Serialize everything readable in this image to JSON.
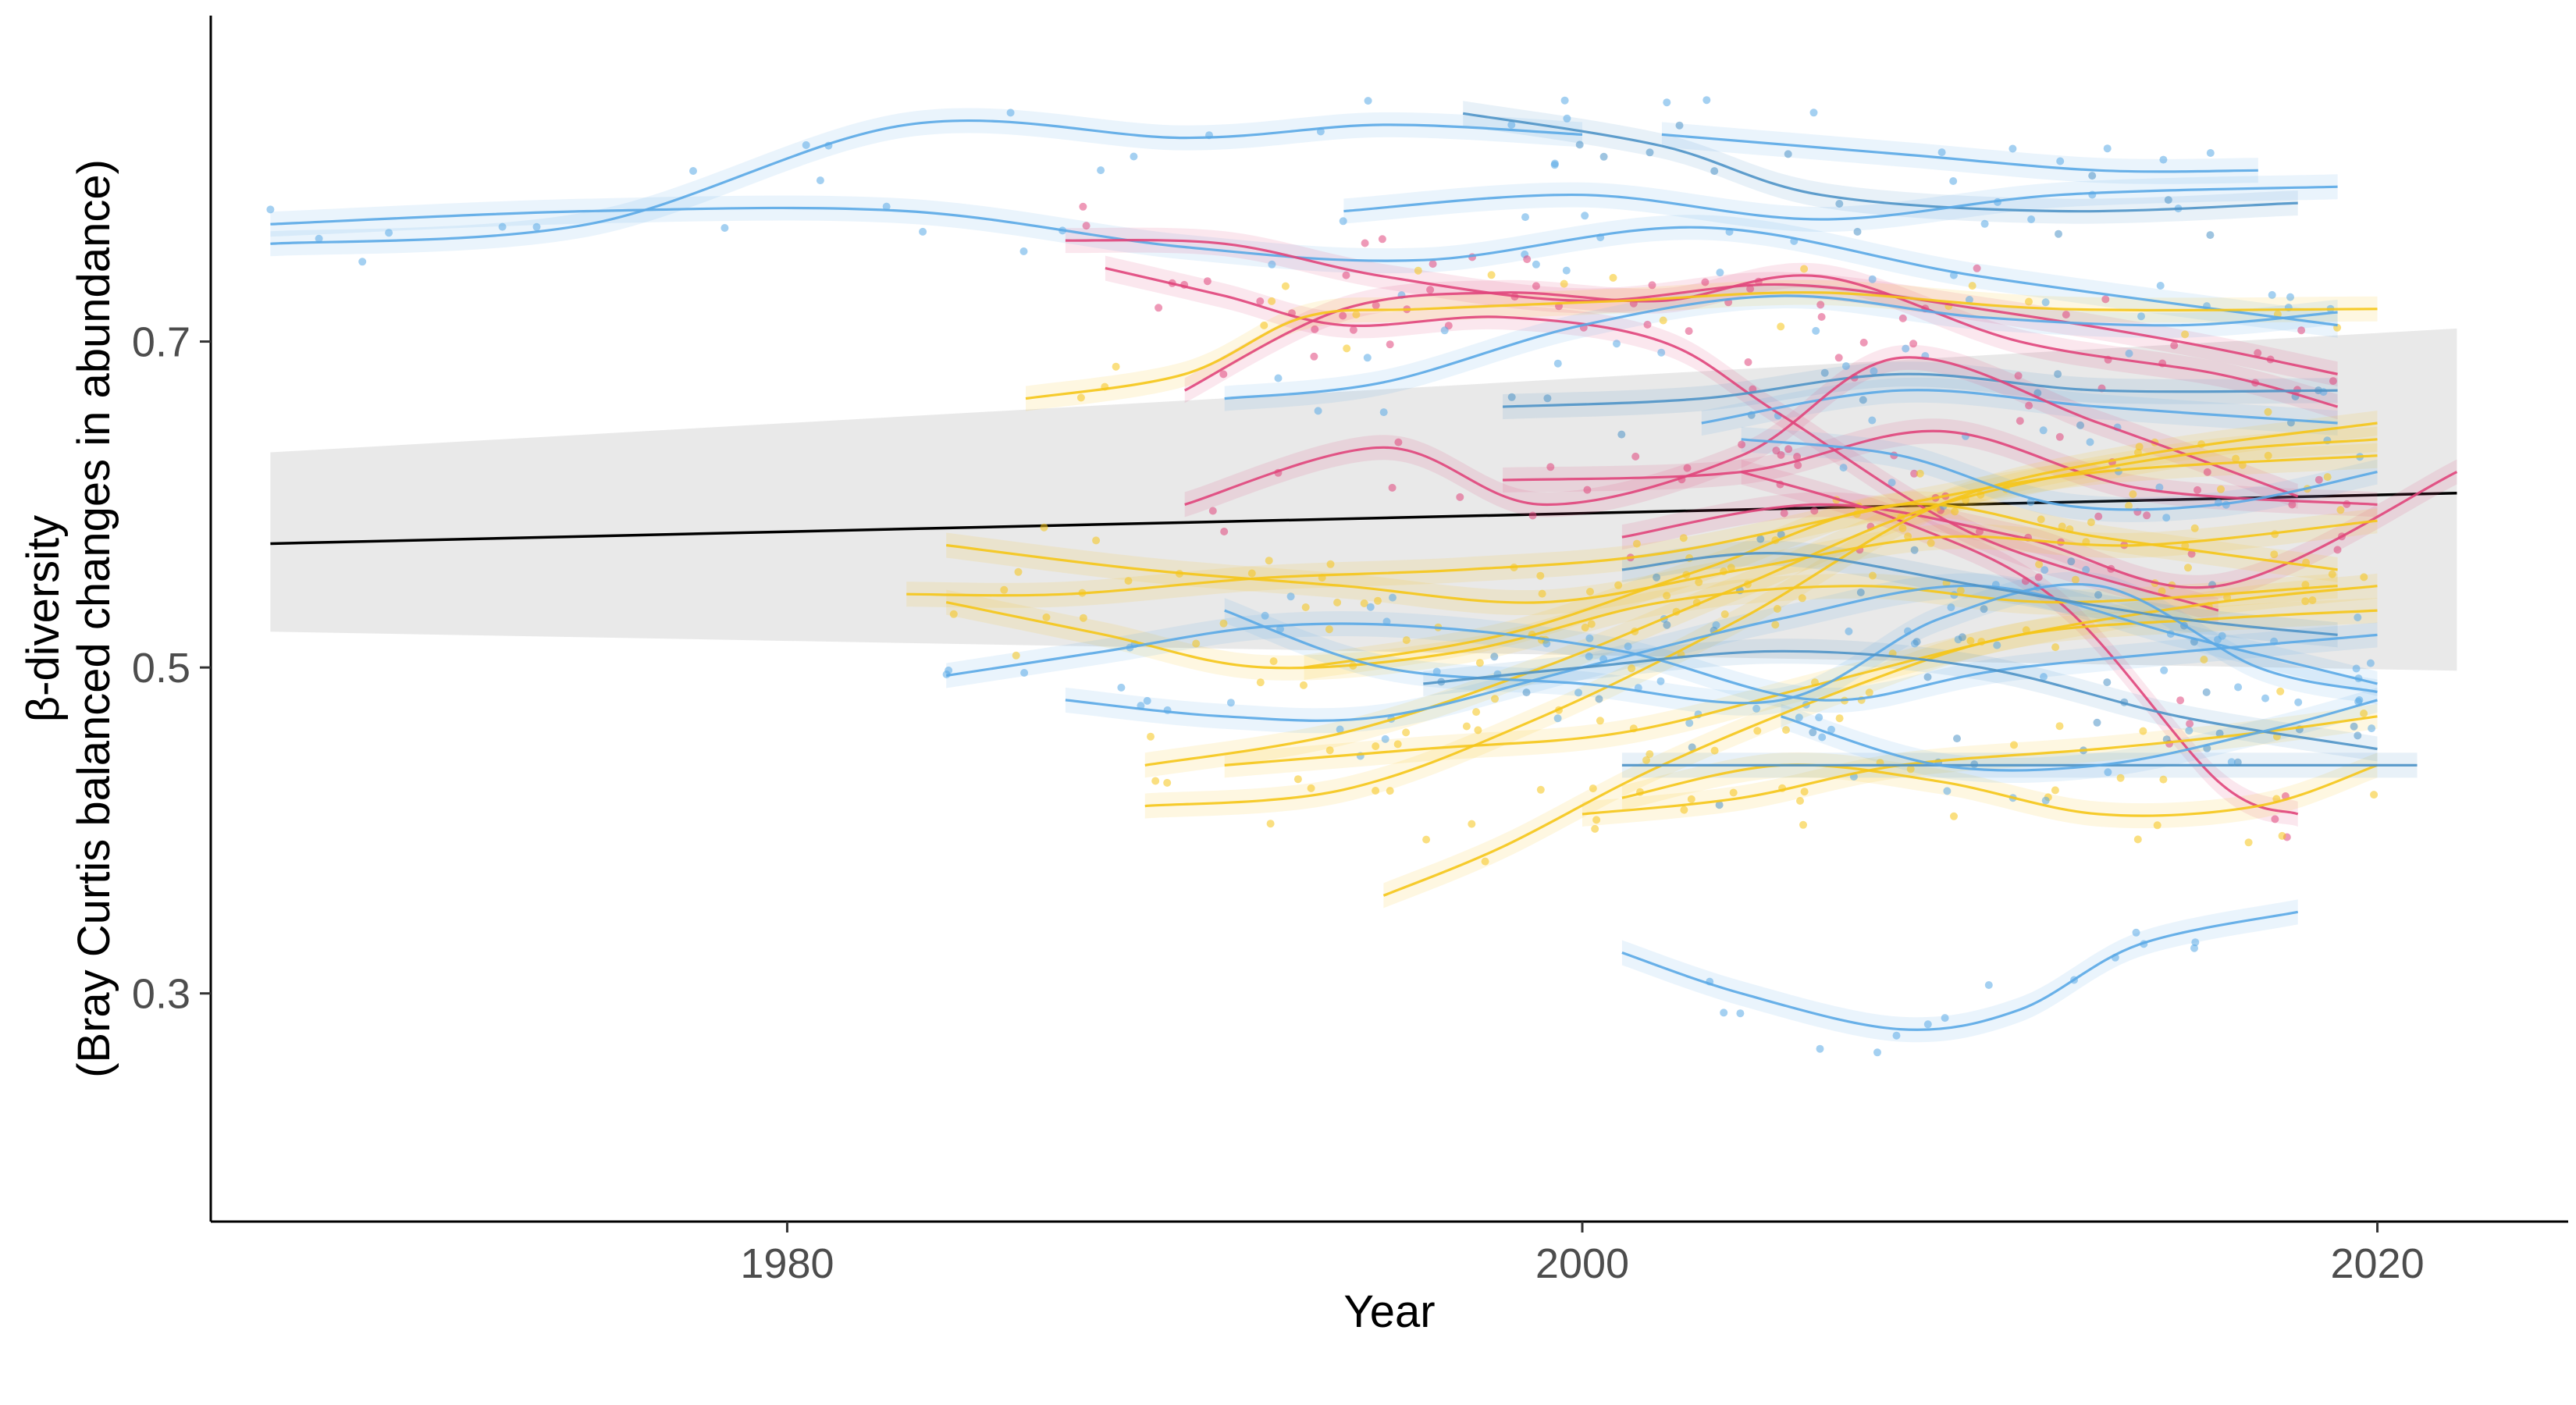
{
  "chart_data": {
    "type": "scatter",
    "xlabel": "Year",
    "ylabel_lines": [
      "β-diversity",
      "(Bray Curtis balanced changes in abundance)"
    ],
    "xlim": [
      1965.5,
      2024.8
    ],
    "ylim": [
      0.16,
      0.9
    ],
    "x_ticks": [
      1980,
      2000,
      2020
    ],
    "y_ticks": [
      0.3,
      0.5,
      0.7
    ],
    "grid": false,
    "legend": "none",
    "colors": {
      "blue": "#5aa9e6",
      "steel": "#4f93c7",
      "pink": "#e0457b",
      "yellow": "#f5c518",
      "trend": "#000000",
      "ribbon": "#e5e5e5"
    },
    "overall_trend": {
      "x": [
        1967,
        2022
      ],
      "y": [
        0.576,
        0.607
      ],
      "ci_lower": [
        0.522,
        0.498
      ],
      "ci_upper": [
        0.632,
        0.708
      ]
    },
    "series": [
      {
        "color": "blue",
        "x": [
          1967,
          1975,
          1983,
          1990,
          1995,
          2000
        ],
        "y": [
          0.76,
          0.772,
          0.833,
          0.825,
          0.833,
          0.827
        ]
      },
      {
        "color": "blue",
        "x": [
          1967,
          1975,
          1983,
          1990,
          1996,
          2003,
          2010,
          2019
        ],
        "y": [
          0.772,
          0.78,
          0.78,
          0.758,
          0.75,
          0.77,
          0.74,
          0.71
        ]
      },
      {
        "color": "steel",
        "x": [
          1997,
          2002,
          2006,
          2012,
          2018
        ],
        "y": [
          0.84,
          0.82,
          0.79,
          0.78,
          0.785
        ]
      },
      {
        "color": "blue",
        "x": [
          1994,
          2000,
          2006,
          2012,
          2019
        ],
        "y": [
          0.78,
          0.79,
          0.775,
          0.79,
          0.795
        ]
      },
      {
        "color": "blue",
        "x": [
          2002,
          2008,
          2013,
          2017
        ],
        "y": [
          0.827,
          0.815,
          0.805,
          0.805
        ]
      },
      {
        "color": "pink",
        "x": [
          1987,
          1991,
          1995,
          2000,
          2005,
          2010,
          2015,
          2019
        ],
        "y": [
          0.762,
          0.76,
          0.74,
          0.725,
          0.735,
          0.72,
          0.7,
          0.68
        ]
      },
      {
        "color": "pink",
        "x": [
          1988,
          1991,
          1994,
          1998,
          2002,
          2005,
          2010,
          2016
        ],
        "y": [
          0.745,
          0.728,
          0.71,
          0.715,
          0.7,
          0.655,
          0.58,
          0.535
        ]
      },
      {
        "color": "pink",
        "x": [
          1990,
          1994,
          1998,
          2002,
          2006,
          2011,
          2016,
          2019
        ],
        "y": [
          0.67,
          0.72,
          0.73,
          0.725,
          0.74,
          0.7,
          0.68,
          0.66
        ]
      },
      {
        "color": "yellow",
        "x": [
          1986,
          1990,
          1993,
          1996,
          2001,
          2006,
          2012,
          2020
        ],
        "y": [
          0.665,
          0.68,
          0.715,
          0.72,
          0.725,
          0.73,
          0.72,
          0.72
        ]
      },
      {
        "color": "blue",
        "x": [
          1991,
          1995,
          2000,
          2005,
          2010,
          2015,
          2019
        ],
        "y": [
          0.665,
          0.675,
          0.71,
          0.728,
          0.715,
          0.71,
          0.718
        ]
      },
      {
        "color": "steel",
        "x": [
          1998,
          2003,
          2008,
          2013,
          2019
        ],
        "y": [
          0.66,
          0.665,
          0.68,
          0.67,
          0.67
        ]
      },
      {
        "color": "blue",
        "x": [
          2003,
          2008,
          2013,
          2019
        ],
        "y": [
          0.65,
          0.67,
          0.66,
          0.65
        ]
      },
      {
        "color": "pink",
        "x": [
          1990,
          1995,
          1999,
          2004,
          2008,
          2013,
          2018
        ],
        "y": [
          0.6,
          0.635,
          0.6,
          0.63,
          0.69,
          0.65,
          0.605
        ]
      },
      {
        "color": "pink",
        "x": [
          1998,
          2004,
          2009,
          2014,
          2020
        ],
        "y": [
          0.615,
          0.62,
          0.645,
          0.61,
          0.6
        ]
      },
      {
        "color": "pink",
        "x": [
          2004,
          2008,
          2012,
          2016,
          2018
        ],
        "y": [
          0.62,
          0.59,
          0.54,
          0.43,
          0.41
        ]
      },
      {
        "color": "pink",
        "x": [
          2001,
          2006,
          2011,
          2016,
          2022
        ],
        "y": [
          0.58,
          0.6,
          0.58,
          0.55,
          0.62
        ]
      },
      {
        "color": "yellow",
        "x": [
          1983,
          1987,
          1992,
          1997,
          2002,
          2008,
          2013,
          2020
        ],
        "y": [
          0.545,
          0.545,
          0.555,
          0.56,
          0.57,
          0.6,
          0.62,
          0.63
        ]
      },
      {
        "color": "yellow",
        "x": [
          1984,
          1989,
          1994,
          1999,
          2004,
          2009,
          2014,
          2020
        ],
        "y": [
          0.575,
          0.56,
          0.55,
          0.54,
          0.56,
          0.58,
          0.575,
          0.59
        ]
      },
      {
        "color": "yellow",
        "x": [
          1984,
          1988,
          1992,
          1997,
          2002,
          2007,
          2012,
          2019
        ],
        "y": [
          0.54,
          0.52,
          0.5,
          0.51,
          0.54,
          0.55,
          0.54,
          0.55
        ]
      },
      {
        "color": "yellow",
        "x": [
          1989,
          1994,
          1999,
          2004,
          2009,
          2015,
          2020
        ],
        "y": [
          0.44,
          0.46,
          0.5,
          0.55,
          0.6,
          0.63,
          0.64
        ]
      },
      {
        "color": "yellow",
        "x": [
          1989,
          1994,
          1999,
          2004,
          2009,
          2014,
          2020
        ],
        "y": [
          0.415,
          0.425,
          0.47,
          0.53,
          0.6,
          0.63,
          0.65
        ]
      },
      {
        "color": "yellow",
        "x": [
          1991,
          1996,
          2001,
          2006,
          2011,
          2016,
          2020
        ],
        "y": [
          0.44,
          0.45,
          0.46,
          0.49,
          0.52,
          0.54,
          0.55
        ]
      },
      {
        "color": "yellow",
        "x": [
          1995,
          1998,
          2002,
          2007,
          2011,
          2016,
          2020
        ],
        "y": [
          0.36,
          0.39,
          0.44,
          0.49,
          0.52,
          0.53,
          0.535
        ]
      },
      {
        "color": "yellow",
        "x": [
          2000,
          2004,
          2008,
          2013,
          2017,
          2020
        ],
        "y": [
          0.41,
          0.42,
          0.44,
          0.45,
          0.46,
          0.47
        ]
      },
      {
        "color": "yellow",
        "x": [
          2001,
          2005,
          2009,
          2013,
          2017,
          2020
        ],
        "y": [
          0.42,
          0.44,
          0.43,
          0.41,
          0.415,
          0.44
        ]
      },
      {
        "color": "yellow",
        "x": [
          1993,
          1998,
          2003,
          2008,
          2013,
          2019
        ],
        "y": [
          0.5,
          0.52,
          0.56,
          0.6,
          0.58,
          0.56
        ]
      },
      {
        "color": "blue",
        "x": [
          1984,
          1988,
          1992,
          1996,
          2001,
          2006,
          2011,
          2020
        ],
        "y": [
          0.495,
          0.51,
          0.525,
          0.525,
          0.51,
          0.48,
          0.5,
          0.52
        ]
      },
      {
        "color": "blue",
        "x": [
          1987,
          1991,
          1995,
          2000,
          2005,
          2010,
          2015,
          2020
        ],
        "y": [
          0.48,
          0.47,
          0.47,
          0.5,
          0.53,
          0.55,
          0.52,
          0.49
        ]
      },
      {
        "color": "blue",
        "x": [
          1991,
          1995,
          2000,
          2005,
          2009,
          2013,
          2017,
          2020
        ],
        "y": [
          0.535,
          0.5,
          0.49,
          0.48,
          0.53,
          0.55,
          0.5,
          0.485
        ]
      },
      {
        "color": "steel",
        "x": [
          1996,
          2000,
          2005,
          2010,
          2015,
          2020
        ],
        "y": [
          0.49,
          0.5,
          0.51,
          0.5,
          0.47,
          0.45
        ]
      },
      {
        "color": "steel",
        "x": [
          2001,
          2005,
          2010,
          2015,
          2019
        ],
        "y": [
          0.56,
          0.57,
          0.55,
          0.53,
          0.52
        ]
      },
      {
        "color": "blue",
        "x": [
          2004,
          2008,
          2012,
          2016,
          2020
        ],
        "y": [
          0.64,
          0.63,
          0.6,
          0.6,
          0.62
        ]
      },
      {
        "color": "steel",
        "x": [
          2001,
          2006,
          2011,
          2016,
          2021
        ],
        "y": [
          0.44,
          0.44,
          0.44,
          0.44,
          0.44
        ]
      },
      {
        "color": "blue",
        "x": [
          2005,
          2009,
          2013,
          2017,
          2020
        ],
        "y": [
          0.47,
          0.44,
          0.44,
          0.46,
          0.48
        ]
      },
      {
        "color": "blue",
        "x": [
          2001,
          2004,
          2008,
          2011,
          2014,
          2018
        ],
        "y": [
          0.325,
          0.3,
          0.278,
          0.29,
          0.33,
          0.35
        ]
      }
    ]
  }
}
